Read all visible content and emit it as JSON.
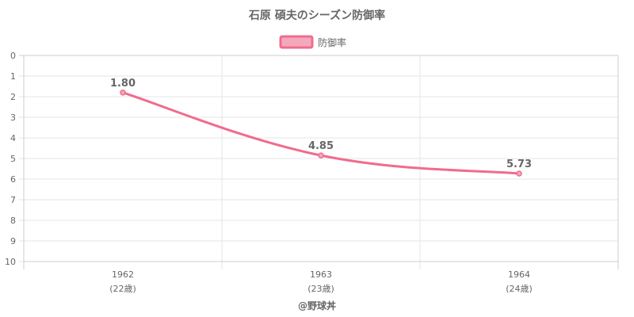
{
  "chart_data": {
    "type": "line",
    "title": "石原 碩夫のシーズン防御率",
    "categories": [
      "1962",
      "1963",
      "1964"
    ],
    "category_sublabels": [
      "(22歳)",
      "(23歳)",
      "(24歳)"
    ],
    "series": [
      {
        "name": "防御率",
        "values": [
          1.8,
          4.85,
          5.73
        ],
        "data_labels": [
          "1.80",
          "4.85",
          "5.73"
        ]
      }
    ],
    "y_axis": {
      "min": 0,
      "max": 10,
      "step": 1,
      "reversed": true,
      "tick_labels": [
        "0",
        "1",
        "2",
        "3",
        "4",
        "5",
        "6",
        "7",
        "8",
        "9",
        "10"
      ]
    },
    "grid": true,
    "legend_position": "top-center",
    "colors": {
      "line": "#f06c8c",
      "fill": "#f5a8bb",
      "grid": "#e5e5e5",
      "axis": "#cccccc"
    }
  },
  "footer": "@野球丼"
}
